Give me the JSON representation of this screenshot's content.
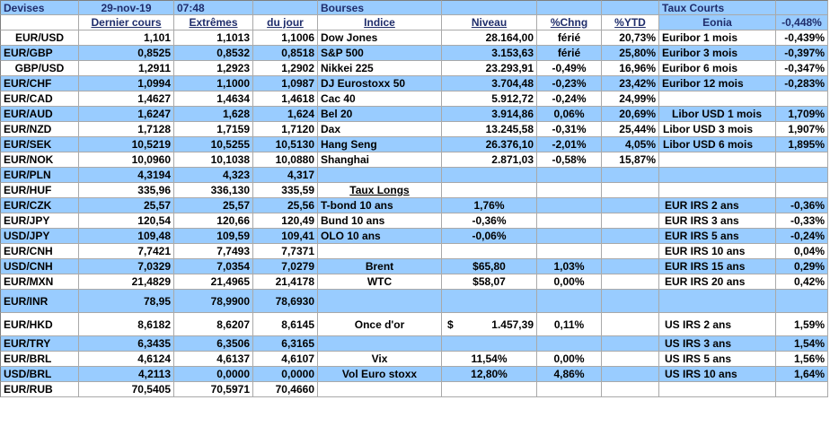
{
  "header": {
    "devises": "Devises",
    "date": "29-nov-19",
    "time": "07:48",
    "bourses": "Bourses",
    "taux_courts": "Taux Courts",
    "eonia_label": "Eonia",
    "eonia_value": "-0,448%"
  },
  "subheader": {
    "dernier_cours": "Dernier cours",
    "extremes": "Extrêmes",
    "du_jour": "du jour",
    "indice": "Indice",
    "niveau": "Niveau",
    "pct_chng": "%Chng",
    "pct_ytd": "%YTD"
  },
  "rows": [
    {
      "pair": "EUR/USD",
      "last": "1,101",
      "high": "1,1013",
      "low": "1,1006",
      "idx": "Dow Jones",
      "lvl": "28.164,00",
      "chg": "férié",
      "ytd": "20,73%",
      "rate": "Euribor 1 mois",
      "rval": "-0,439%"
    },
    {
      "pair": "EUR/GBP",
      "last": "0,8525",
      "high": "0,8532",
      "low": "0,8518",
      "idx": "S&P 500",
      "lvl": "3.153,63",
      "chg": "férié",
      "ytd": "25,80%",
      "rate": "Euribor 3 mois",
      "rval": "-0,397%"
    },
    {
      "pair": "GBP/USD",
      "last": "1,2911",
      "high": "1,2923",
      "low": "1,2902",
      "idx": "Nikkei 225",
      "lvl": "23.293,91",
      "chg": "-0,49%",
      "ytd": "16,96%",
      "rate": "Euribor 6 mois",
      "rval": "-0,347%"
    },
    {
      "pair": "EUR/CHF",
      "last": "1,0994",
      "high": "1,1000",
      "low": "1,0987",
      "idx": "DJ Eurostoxx 50",
      "lvl": "3.704,48",
      "chg": "-0,23%",
      "ytd": "23,42%",
      "rate": "Euribor 12 mois",
      "rval": "-0,283%"
    },
    {
      "pair": "EUR/CAD",
      "last": "1,4627",
      "high": "1,4634",
      "low": "1,4618",
      "idx": "Cac 40",
      "lvl": "5.912,72",
      "chg": "-0,24%",
      "ytd": "24,99%",
      "rate": "",
      "rval": ""
    },
    {
      "pair": "EUR/AUD",
      "last": "1,6247",
      "high": "1,628",
      "low": "1,624",
      "idx": "Bel 20",
      "lvl": "3.914,86",
      "chg": "0,06%",
      "ytd": "20,69%",
      "rate": "Libor USD 1 mois",
      "rval": "1,709%"
    },
    {
      "pair": "EUR/NZD",
      "last": "1,7128",
      "high": "1,7159",
      "low": "1,7120",
      "idx": "Dax",
      "lvl": "13.245,58",
      "chg": "-0,31%",
      "ytd": "25,44%",
      "rate": "Libor USD 3 mois",
      "rval": "1,907%"
    },
    {
      "pair": "EUR/SEK",
      "last": "10,5219",
      "high": "10,5255",
      "low": "10,5130",
      "idx": "Hang Seng",
      "lvl": "26.376,10",
      "chg": "-2,01%",
      "ytd": "4,05%",
      "rate": "Libor USD 6 mois",
      "rval": "1,895%"
    },
    {
      "pair": "EUR/NOK",
      "last": "10,0960",
      "high": "10,1038",
      "low": "10,0880",
      "idx": "Shanghai",
      "lvl": "2.871,03",
      "chg": "-0,58%",
      "ytd": "15,87%",
      "rate": "",
      "rval": ""
    },
    {
      "pair": "EUR/PLN",
      "last": "4,3194",
      "high": "4,323",
      "low": "4,317",
      "idx": "",
      "lvl": "",
      "chg": "",
      "ytd": "",
      "rate": "",
      "rval": ""
    },
    {
      "pair": "EUR/HUF",
      "last": "335,96",
      "high": "336,130",
      "low": "335,59",
      "idx": "Taux Longs",
      "lvl": "",
      "chg": "",
      "ytd": "",
      "rate": "",
      "rval": ""
    },
    {
      "pair": "EUR/CZK",
      "last": "25,57",
      "high": "25,57",
      "low": "25,56",
      "idx": "T-bond 10 ans",
      "lvl": "1,76%",
      "chg": "",
      "ytd": "",
      "rate": "EUR IRS 2 ans",
      "rval": "-0,36%"
    },
    {
      "pair": "EUR/JPY",
      "last": "120,54",
      "high": "120,66",
      "low": "120,49",
      "idx": "Bund 10 ans",
      "lvl": "-0,36%",
      "chg": "",
      "ytd": "",
      "rate": "EUR IRS 3 ans",
      "rval": "-0,33%"
    },
    {
      "pair": "USD/JPY",
      "last": "109,48",
      "high": "109,59",
      "low": "109,41",
      "idx": "OLO 10 ans",
      "lvl": "-0,06%",
      "chg": "",
      "ytd": "",
      "rate": "EUR IRS 5 ans",
      "rval": "-0,24%"
    },
    {
      "pair": "EUR/CNH",
      "last": "7,7421",
      "high": "7,7493",
      "low": "7,7371",
      "idx": "",
      "lvl": "",
      "chg": "",
      "ytd": "",
      "rate": "EUR IRS 10 ans",
      "rval": "0,04%"
    },
    {
      "pair": "USD/CNH",
      "last": "7,0329",
      "high": "7,0354",
      "low": "7,0279",
      "idx": "Brent",
      "lvl": "$65,80",
      "chg": "1,03%",
      "ytd": "",
      "rate": "EUR IRS 15 ans",
      "rval": "0,29%"
    },
    {
      "pair": "EUR/MXN",
      "last": "21,4829",
      "high": "21,4965",
      "low": "21,4178",
      "idx": "WTC",
      "lvl": "$58,07",
      "chg": "0,00%",
      "ytd": "",
      "rate": "EUR IRS 20 ans",
      "rval": "0,42%"
    },
    {
      "pair": "EUR/INR",
      "last": "78,95",
      "high": "78,9900",
      "low": "78,6930",
      "idx": "",
      "lvl": "",
      "chg": "",
      "ytd": "",
      "rate": "",
      "rval": ""
    },
    {
      "pair": "EUR/HKD",
      "last": "8,6182",
      "high": "8,6207",
      "low": "8,6145",
      "idx": "Once d'or",
      "lvl_sym": "$",
      "lvl": "1.457,39",
      "chg": "0,11%",
      "ytd": "",
      "rate": "US IRS 2 ans",
      "rval": "1,59%"
    },
    {
      "pair": "EUR/TRY",
      "last": "6,3435",
      "high": "6,3506",
      "low": "6,3165",
      "idx": "",
      "lvl": "",
      "chg": "",
      "ytd": "",
      "rate": "US IRS 3 ans",
      "rval": "1,54%"
    },
    {
      "pair": "EUR/BRL",
      "last": "4,6124",
      "high": "4,6137",
      "low": "4,6107",
      "idx": "Vix",
      "lvl": "11,54%",
      "chg": "0,00%",
      "ytd": "",
      "rate": "US IRS 5 ans",
      "rval": "1,56%"
    },
    {
      "pair": "USD/BRL",
      "last": "4,2113",
      "high": "0,0000",
      "low": "0,0000",
      "idx": "Vol Euro stoxx",
      "lvl": "12,80%",
      "chg": "4,86%",
      "ytd": "",
      "rate": "US IRS 10 ans",
      "rval": "1,64%"
    },
    {
      "pair": "EUR/RUB",
      "last": "70,5405",
      "high": "70,5971",
      "low": "70,4660",
      "idx": "",
      "lvl": "",
      "chg": "",
      "ytd": "",
      "rate": "",
      "rval": ""
    }
  ],
  "colors": {
    "stripe": "#99ccff",
    "header_text": "#1f2d6b",
    "border": "#a9a9a9"
  }
}
